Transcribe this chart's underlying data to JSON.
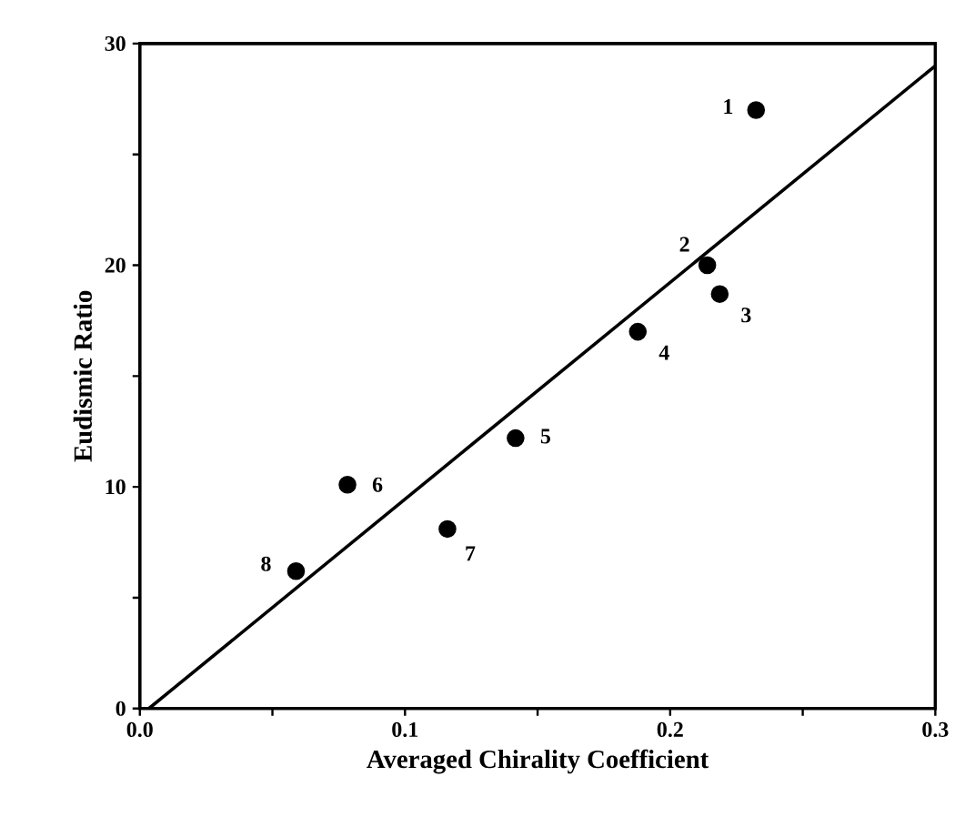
{
  "chart_data": {
    "type": "scatter",
    "xlabel": "Averaged Chirality Coefficient",
    "ylabel": "Eudismic Ratio",
    "series": [
      {
        "color": "#000000",
        "marker": "circle",
        "x": [
          0.2324,
          0.214,
          0.2187,
          0.1878,
          0.1417,
          0.0783,
          0.116,
          0.0589
        ],
        "values": [
          27.0,
          20.0,
          18.7,
          17.0,
          12.2,
          10.1,
          8.1,
          6.2
        ]
      },
      {
        "type": "line",
        "color": "#000000",
        "marker": "none",
        "line_style": "solid",
        "x": [
          0.0034,
          0.3
        ],
        "values": [
          0,
          29.0
        ]
      }
    ],
    "xlim": [
      0,
      0.3
    ],
    "ylim": [
      0,
      30
    ],
    "xticks": [
      {
        "value": 0,
        "label": "0.0"
      },
      {
        "value": 0.05,
        "label": null
      },
      {
        "value": 0.1,
        "label": "0.1"
      },
      {
        "value": 0.15,
        "label": null
      },
      {
        "value": 0.2,
        "label": "0.2"
      },
      {
        "value": 0.25,
        "label": null
      },
      {
        "value": 0.3,
        "label": "0.3"
      }
    ],
    "yticks": [
      0,
      {
        "value": 5,
        "label": null
      },
      10,
      {
        "value": 15,
        "label": null
      },
      20,
      {
        "value": 25,
        "label": null
      },
      30
    ],
    "annotations": [
      {
        "text": "1",
        "x": 0.2324,
        "y": 27.0
      },
      {
        "text": "2",
        "x": 0.214,
        "y": 20.0
      },
      {
        "text": "3",
        "x": 0.2187,
        "y": 18.7
      },
      {
        "text": "4",
        "x": 0.1878,
        "y": 17.0
      },
      {
        "text": "5",
        "x": 0.1417,
        "y": 12.2
      },
      {
        "text": "6",
        "x": 0.0783,
        "y": 10.1
      },
      {
        "text": "7",
        "x": 0.116,
        "y": 8.1
      },
      {
        "text": "8",
        "x": 0.0589,
        "y": 6.2
      }
    ],
    "grid": false
  }
}
